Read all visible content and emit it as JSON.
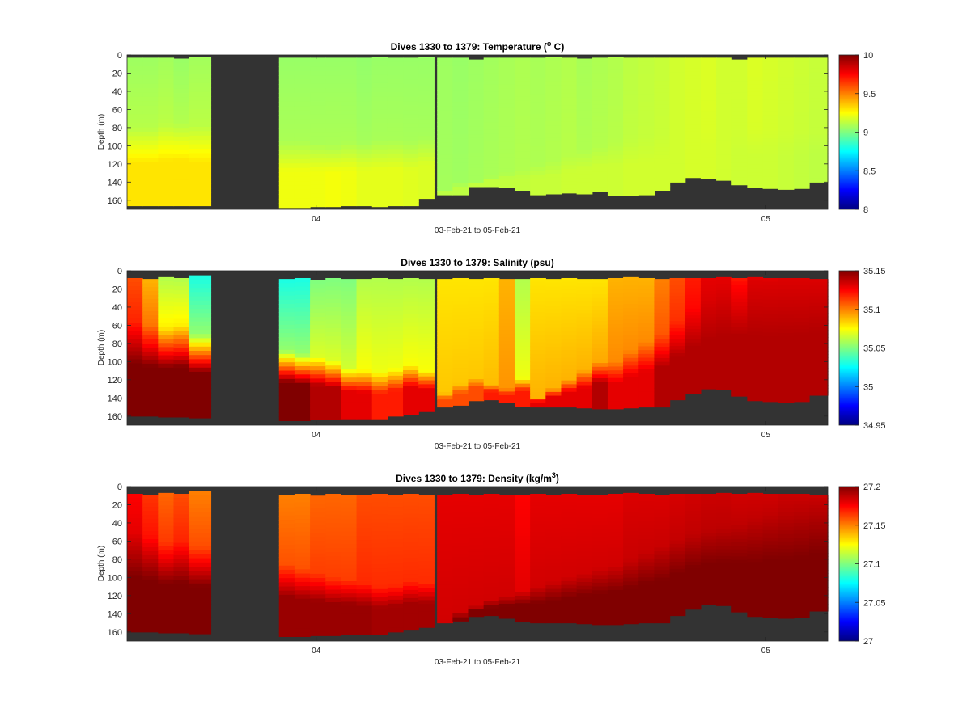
{
  "figure": {
    "background": "#ffffff",
    "land_color": "#333333",
    "colormap": "jet"
  },
  "chart_data": [
    {
      "type": "heatmap",
      "title_text": "Dives 1330 to 1379: Temperature (",
      "title_sup": "o",
      "title_end": " C)",
      "ylabel": "Depth (m)",
      "xlabel": "03-Feb-21 to 05-Feb-21",
      "y_ticks": [
        "0",
        "20",
        "40",
        "60",
        "80",
        "100",
        "120",
        "140",
        "160"
      ],
      "y_tick_values": [
        0,
        20,
        40,
        60,
        80,
        100,
        120,
        140,
        160
      ],
      "ylim": [
        0,
        170
      ],
      "y_reversed": true,
      "x_ticks": [
        "04",
        "05"
      ],
      "x_tick_dives": [
        1339.4,
        1368.4
      ],
      "xlim_dives": [
        1327.2,
        1372.4
      ],
      "colorbar": {
        "min": 8,
        "max": 10,
        "ticks": [
          "10",
          "9.5",
          "9",
          "8.5",
          "8"
        ],
        "tick_values": [
          10,
          9.5,
          9,
          8.5,
          8
        ]
      },
      "dives": {
        "first": 1330,
        "last": 1379,
        "start_dive": [
          1327.2,
          1328.2,
          1329.2,
          1330.2,
          1331.2,
          1337.0,
          1338.0,
          1339.0,
          1340.0,
          1341.0,
          1342.0,
          1343.0,
          1344.0,
          1345.0,
          1346.0,
          1347.2,
          1348.2,
          1349.2,
          1350.2,
          1351.2,
          1352.2,
          1353.2,
          1354.2,
          1355.2,
          1356.2,
          1357.2,
          1358.2,
          1359.2,
          1360.2,
          1361.2,
          1362.2,
          1363.2,
          1364.2,
          1365.2,
          1366.2,
          1367.2,
          1368.2,
          1369.2,
          1370.2,
          1371.2
        ],
        "end_dive": [
          1328.2,
          1329.2,
          1330.2,
          1331.2,
          1332.6,
          1338.0,
          1339.0,
          1340.0,
          1341.0,
          1342.0,
          1343.0,
          1344.0,
          1345.0,
          1346.0,
          1347.0,
          1348.2,
          1349.2,
          1350.2,
          1351.2,
          1352.2,
          1353.2,
          1354.2,
          1355.2,
          1356.2,
          1357.2,
          1358.2,
          1359.2,
          1360.2,
          1361.2,
          1362.2,
          1363.2,
          1364.2,
          1365.2,
          1366.2,
          1367.2,
          1368.2,
          1369.2,
          1370.2,
          1371.2,
          1372.4
        ],
        "top_m": [
          3,
          3,
          3,
          4,
          2,
          3,
          3,
          3,
          3,
          3,
          3,
          2,
          3,
          3,
          2,
          3,
          3,
          5,
          3,
          3,
          3,
          3,
          2,
          3,
          4,
          3,
          2,
          3,
          3,
          3,
          3,
          3,
          3,
          3,
          5,
          3,
          3,
          3,
          3,
          3
        ],
        "bottom_m": [
          166,
          166,
          166,
          166,
          166,
          168,
          168,
          167,
          167,
          166,
          166,
          167,
          166,
          166,
          158,
          154,
          154,
          145,
          145,
          146,
          149,
          154,
          153,
          152,
          153,
          150,
          155,
          155,
          154,
          149,
          140,
          135,
          136,
          138,
          143,
          146,
          147,
          148,
          147,
          140
        ],
        "surface_value": [
          9.06,
          9.06,
          9.07,
          9.05,
          9.07,
          9.05,
          9.05,
          9.05,
          9.05,
          9.05,
          9.04,
          9.05,
          9.05,
          9.05,
          9.05,
          9.06,
          9.05,
          9.06,
          9.07,
          9.08,
          9.09,
          9.08,
          9.09,
          9.1,
          9.08,
          9.09,
          9.1,
          9.12,
          9.13,
          9.14,
          9.16,
          9.17,
          9.18,
          9.16,
          9.16,
          9.18,
          9.17,
          9.16,
          9.15,
          9.14
        ],
        "transition_m": [
          80,
          80,
          76,
          75,
          78,
          95,
          95,
          97,
          99,
          95,
          95,
          93,
          92,
          94,
          90,
          150,
          140,
          140,
          134,
          130,
          125,
          120,
          116,
          110,
          104,
          100,
          96,
          93,
          90,
          86,
          83,
          80,
          80,
          78,
          78,
          80,
          80,
          82,
          84,
          85
        ],
        "bottom_value": [
          9.3,
          9.3,
          9.3,
          9.3,
          9.3,
          9.22,
          9.22,
          9.22,
          9.23,
          9.22,
          9.2,
          9.2,
          9.2,
          9.19,
          9.18,
          9.12,
          9.12,
          9.13,
          9.13,
          9.13,
          9.13,
          9.14,
          9.14,
          9.15,
          9.15,
          9.15,
          9.15,
          9.16,
          9.16,
          9.16,
          9.16,
          9.17,
          9.17,
          9.16,
          9.15,
          9.15,
          9.15,
          9.14,
          9.13,
          9.12
        ]
      }
    },
    {
      "type": "heatmap",
      "title_text": "Dives 1330 to 1379: Salinity (psu)",
      "title_sup": "",
      "title_end": "",
      "ylabel": "Depth (m)",
      "xlabel": "03-Feb-21 to 05-Feb-21",
      "y_ticks": [
        "0",
        "20",
        "40",
        "60",
        "80",
        "100",
        "120",
        "140",
        "160"
      ],
      "y_tick_values": [
        0,
        20,
        40,
        60,
        80,
        100,
        120,
        140,
        160
      ],
      "ylim": [
        0,
        170
      ],
      "y_reversed": true,
      "x_ticks": [
        "04",
        "05"
      ],
      "x_tick_dives": [
        1339.4,
        1368.4
      ],
      "xlim_dives": [
        1327.2,
        1372.4
      ],
      "colorbar": {
        "min": 34.95,
        "max": 35.15,
        "ticks": [
          "35.15",
          "35.1",
          "35.05",
          "35",
          "34.95"
        ],
        "tick_values": [
          35.15,
          35.1,
          35.05,
          35.0,
          34.95
        ]
      },
      "dives": {
        "first": 1330,
        "last": 1379,
        "start_dive": [
          1327.2,
          1328.2,
          1329.2,
          1330.2,
          1331.2,
          1337.0,
          1338.0,
          1339.0,
          1340.0,
          1341.0,
          1342.0,
          1343.0,
          1344.0,
          1345.0,
          1346.0,
          1347.2,
          1348.2,
          1349.2,
          1350.2,
          1351.2,
          1352.2,
          1353.2,
          1354.2,
          1355.2,
          1356.2,
          1357.2,
          1358.2,
          1359.2,
          1360.2,
          1361.2,
          1362.2,
          1363.2,
          1364.2,
          1365.2,
          1366.2,
          1367.2,
          1368.2,
          1369.2,
          1370.2,
          1371.2
        ],
        "end_dive": [
          1328.2,
          1329.2,
          1330.2,
          1331.2,
          1332.6,
          1338.0,
          1339.0,
          1340.0,
          1341.0,
          1342.0,
          1343.0,
          1344.0,
          1345.0,
          1346.0,
          1347.0,
          1348.2,
          1349.2,
          1350.2,
          1351.2,
          1352.2,
          1353.2,
          1354.2,
          1355.2,
          1356.2,
          1357.2,
          1358.2,
          1359.2,
          1360.2,
          1361.2,
          1362.2,
          1363.2,
          1364.2,
          1365.2,
          1366.2,
          1367.2,
          1368.2,
          1369.2,
          1370.2,
          1371.2,
          1372.4
        ],
        "top_m": [
          8,
          9,
          7,
          8,
          5,
          9,
          8,
          10,
          8,
          9,
          9,
          8,
          9,
          8,
          9,
          9,
          8,
          9,
          8,
          9,
          9,
          8,
          9,
          8,
          9,
          9,
          8,
          7,
          8,
          9,
          8,
          8,
          8,
          7,
          8,
          7,
          8,
          8,
          8,
          9
        ],
        "bottom_m": [
          160,
          160,
          161,
          161,
          162,
          165,
          165,
          164,
          164,
          163,
          163,
          163,
          160,
          158,
          155,
          150,
          148,
          143,
          142,
          145,
          149,
          150,
          150,
          150,
          151,
          152,
          152,
          151,
          150,
          150,
          142,
          135,
          130,
          131,
          138,
          143,
          144,
          145,
          144,
          137
        ],
        "surface_value": [
          35.11,
          35.09,
          35.06,
          35.06,
          35.03,
          35.03,
          35.03,
          35.05,
          35.05,
          35.05,
          35.06,
          35.06,
          35.06,
          35.06,
          35.06,
          35.08,
          35.08,
          35.08,
          35.08,
          35.09,
          35.06,
          35.08,
          35.08,
          35.08,
          35.08,
          35.08,
          35.09,
          35.09,
          35.09,
          35.1,
          35.11,
          35.12,
          35.13,
          35.13,
          35.12,
          35.13,
          35.13,
          35.13,
          35.13,
          35.13
        ],
        "transition_m": [
          55,
          60,
          62,
          60,
          70,
          88,
          92,
          95,
          100,
          108,
          110,
          112,
          108,
          104,
          110,
          135,
          125,
          118,
          125,
          130,
          118,
          140,
          130,
          120,
          110,
          100,
          100,
          88,
          78,
          70,
          55,
          40,
          30,
          22,
          15,
          12,
          12,
          10,
          10,
          10
        ],
        "bottom_value": [
          35.15,
          35.15,
          35.15,
          35.15,
          35.15,
          35.15,
          35.15,
          35.14,
          35.14,
          35.13,
          35.13,
          35.12,
          35.12,
          35.13,
          35.13,
          35.11,
          35.11,
          35.11,
          35.12,
          35.12,
          35.12,
          35.13,
          35.13,
          35.13,
          35.13,
          35.14,
          35.13,
          35.13,
          35.13,
          35.14,
          35.14,
          35.14,
          35.14,
          35.14,
          35.14,
          35.14,
          35.14,
          35.14,
          35.14,
          35.14
        ]
      }
    },
    {
      "type": "heatmap",
      "title_text": "Dives 1330 to 1379: Density (kg/m",
      "title_sup": "3",
      "title_end": ")",
      "ylabel": "Depth (m)",
      "xlabel": "03-Feb-21 to 05-Feb-21",
      "y_ticks": [
        "0",
        "20",
        "40",
        "60",
        "80",
        "100",
        "120",
        "140",
        "160"
      ],
      "y_tick_values": [
        0,
        20,
        40,
        60,
        80,
        100,
        120,
        140,
        160
      ],
      "ylim": [
        0,
        170
      ],
      "y_reversed": true,
      "x_ticks": [
        "04",
        "05"
      ],
      "x_tick_dives": [
        1339.4,
        1368.4
      ],
      "xlim_dives": [
        1327.2,
        1372.4
      ],
      "colorbar": {
        "min": 27.0,
        "max": 27.2,
        "ticks": [
          "27.2",
          "27.15",
          "27.1",
          "27.05",
          "27"
        ],
        "tick_values": [
          27.2,
          27.15,
          27.1,
          27.05,
          27.0
        ]
      },
      "dives": {
        "first": 1330,
        "last": 1379,
        "start_dive": [
          1327.2,
          1328.2,
          1329.2,
          1330.2,
          1331.2,
          1337.0,
          1338.0,
          1339.0,
          1340.0,
          1341.0,
          1342.0,
          1343.0,
          1344.0,
          1345.0,
          1346.0,
          1347.2,
          1348.2,
          1349.2,
          1350.2,
          1351.2,
          1352.2,
          1353.2,
          1354.2,
          1355.2,
          1356.2,
          1357.2,
          1358.2,
          1359.2,
          1360.2,
          1361.2,
          1362.2,
          1363.2,
          1364.2,
          1365.2,
          1366.2,
          1367.2,
          1368.2,
          1369.2,
          1370.2,
          1371.2
        ],
        "end_dive": [
          1328.2,
          1329.2,
          1330.2,
          1331.2,
          1332.6,
          1338.0,
          1339.0,
          1340.0,
          1341.0,
          1342.0,
          1343.0,
          1344.0,
          1345.0,
          1346.0,
          1347.0,
          1348.2,
          1349.2,
          1350.2,
          1351.2,
          1352.2,
          1353.2,
          1354.2,
          1355.2,
          1356.2,
          1357.2,
          1358.2,
          1359.2,
          1360.2,
          1361.2,
          1362.2,
          1363.2,
          1364.2,
          1365.2,
          1366.2,
          1367.2,
          1368.2,
          1369.2,
          1370.2,
          1371.2,
          1372.4
        ],
        "top_m": [
          8,
          9,
          7,
          8,
          5,
          9,
          8,
          10,
          8,
          9,
          9,
          8,
          9,
          8,
          9,
          9,
          8,
          9,
          8,
          9,
          9,
          8,
          9,
          8,
          9,
          9,
          8,
          7,
          8,
          9,
          8,
          8,
          8,
          7,
          8,
          7,
          8,
          8,
          8,
          9
        ],
        "bottom_m": [
          160,
          160,
          161,
          161,
          162,
          165,
          165,
          164,
          164,
          163,
          163,
          163,
          160,
          158,
          155,
          150,
          148,
          143,
          142,
          145,
          149,
          150,
          150,
          150,
          151,
          152,
          152,
          151,
          150,
          150,
          142,
          135,
          130,
          131,
          138,
          143,
          144,
          145,
          144,
          137
        ],
        "surface_value": [
          27.175,
          27.165,
          27.155,
          27.16,
          27.15,
          27.15,
          27.15,
          27.155,
          27.155,
          27.155,
          27.16,
          27.16,
          27.16,
          27.16,
          27.16,
          27.18,
          27.18,
          27.18,
          27.18,
          27.18,
          27.175,
          27.18,
          27.18,
          27.18,
          27.18,
          27.18,
          27.18,
          27.182,
          27.182,
          27.182,
          27.183,
          27.184,
          27.185,
          27.185,
          27.184,
          27.184,
          27.184,
          27.185,
          27.185,
          27.185
        ],
        "transition_m": [
          50,
          55,
          62,
          60,
          66,
          85,
          90,
          95,
          100,
          102,
          106,
          110,
          108,
          104,
          106,
          150,
          140,
          132,
          125,
          120,
          114,
          110,
          105,
          100,
          95,
          90,
          86,
          80,
          72,
          65,
          58,
          52,
          48,
          45,
          40,
          35,
          30,
          28,
          25,
          22
        ],
        "bottom_value": [
          27.2,
          27.2,
          27.2,
          27.2,
          27.2,
          27.195,
          27.195,
          27.195,
          27.195,
          27.195,
          27.195,
          27.193,
          27.193,
          27.193,
          27.193,
          27.2,
          27.2,
          27.2,
          27.2,
          27.2,
          27.2,
          27.2,
          27.2,
          27.2,
          27.2,
          27.2,
          27.2,
          27.2,
          27.2,
          27.2,
          27.2,
          27.2,
          27.2,
          27.2,
          27.2,
          27.2,
          27.2,
          27.2,
          27.2,
          27.2
        ]
      }
    }
  ]
}
